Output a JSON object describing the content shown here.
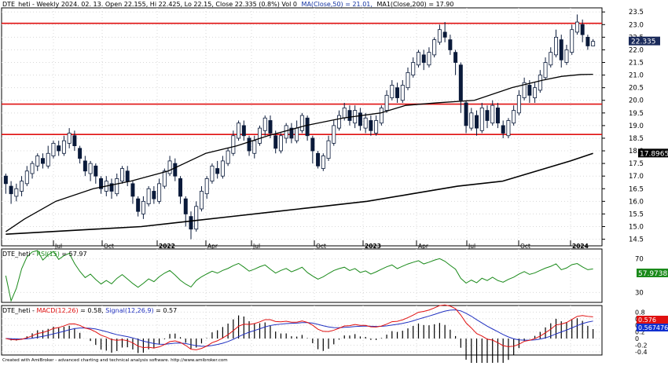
{
  "price_pane": {
    "symbol": "DTE_heti",
    "info_text": "DTE_heti - Weekly 2024. 02. 13. Open 22.155, Hi 22.425, Lo 22.15, Close 22.335 (0.8%) Vol 0",
    "ma50_label": "MA(Close,50) = 21.01,",
    "ma200_label": "MA1(Close,200) = 17.90",
    "last_price_tag": "22.335",
    "ma200_tag": "17.8965",
    "y_ticks": [
      "23.5",
      "23.0",
      "22.5",
      "22.0",
      "21.5",
      "21.0",
      "20.5",
      "20.0",
      "19.5",
      "19.0",
      "18.5",
      "18.0",
      "17.5",
      "17.0",
      "16.5",
      "16.0",
      "15.5",
      "15.0",
      "14.5"
    ],
    "x_ticks": [
      "Jul",
      "Oct",
      "2022",
      "Apr",
      "Jul",
      "Oct",
      "2023",
      "Apr",
      "Jul",
      "Oct",
      "2024"
    ]
  },
  "rsi_pane": {
    "label_prefix": "DTE_heti - ",
    "label_name": "RSI(15)",
    "label_value": " = 57.97",
    "y_ticks": [
      "70",
      "30"
    ],
    "value_tag": "57.9738"
  },
  "macd_pane": {
    "label_prefix": "DTE_heti - ",
    "macd_name": "MACD(12,26)",
    "macd_value": " = 0.58, ",
    "signal_name": "Signal(12,26,9)",
    "signal_value": " = 0.57",
    "y_ticks": [
      "0.8",
      "0.6",
      "0.4",
      "0.2",
      "0",
      "-0.2",
      "-0.4"
    ],
    "macd_tag": "0.576",
    "signal_tag": "0.567476"
  },
  "footer": "Created with AmiBroker - advanced charting and technical analysis software. http://www.amibroker.com",
  "colors": {
    "up_candle": "#ffffff",
    "down_candle": "#0a1a3a",
    "support_line": "#e01010",
    "ma_line": "#000000",
    "rsi_line": "#1a8a1a",
    "macd_line": "#e01010",
    "signal_line": "#2030c0",
    "tag_green": "#1a8a1a",
    "tag_blue": "#1030d0",
    "tag_red": "#e01010"
  },
  "chart_data": {
    "type": "candlestick",
    "ylim": [
      14.3,
      23.6
    ],
    "horizontal_levels": [
      23.05,
      19.85,
      18.65
    ],
    "ma50": [
      [
        0,
        14.8
      ],
      [
        15,
        15.3
      ],
      [
        40,
        16.0
      ],
      [
        70,
        16.5
      ],
      [
        100,
        16.8
      ],
      [
        130,
        17.2
      ],
      [
        160,
        17.9
      ],
      [
        185,
        18.2
      ],
      [
        210,
        18.6
      ],
      [
        240,
        19.0
      ],
      [
        270,
        19.3
      ],
      [
        300,
        19.5
      ],
      [
        320,
        19.8
      ],
      [
        345,
        19.9
      ],
      [
        375,
        20.0
      ],
      [
        405,
        20.5
      ],
      [
        430,
        20.8
      ],
      [
        445,
        20.95
      ],
      [
        460,
        21.02
      ],
      [
        470,
        21.03
      ]
    ],
    "ma200": [
      [
        0,
        14.7
      ],
      [
        40,
        14.8
      ],
      [
        80,
        14.9
      ],
      [
        120,
        15.0
      ],
      [
        160,
        15.2
      ],
      [
        200,
        15.4
      ],
      [
        240,
        15.6
      ],
      [
        280,
        15.8
      ],
      [
        320,
        16.0
      ],
      [
        360,
        16.3
      ],
      [
        400,
        16.6
      ],
      [
        440,
        16.8
      ],
      [
        470,
        17.2
      ],
      [
        500,
        17.6
      ],
      [
        520,
        17.9
      ]
    ],
    "candles": [
      [
        17.0,
        16.7,
        17.1,
        16.3
      ],
      [
        16.6,
        16.3,
        16.8,
        15.9
      ],
      [
        16.2,
        16.5,
        16.7,
        16.0
      ],
      [
        16.4,
        16.8,
        17.0,
        16.2
      ],
      [
        16.7,
        17.2,
        17.4,
        16.6
      ],
      [
        17.1,
        17.5,
        17.6,
        16.9
      ],
      [
        17.4,
        17.8,
        17.9,
        17.2
      ],
      [
        17.7,
        17.5,
        17.9,
        17.3
      ],
      [
        17.4,
        17.9,
        18.2,
        17.3
      ],
      [
        17.8,
        18.3,
        18.4,
        17.7
      ],
      [
        18.2,
        18.0,
        18.4,
        17.8
      ],
      [
        17.9,
        18.4,
        18.6,
        17.8
      ],
      [
        18.3,
        18.7,
        18.9,
        18.1
      ],
      [
        18.6,
        18.2,
        18.8,
        18.0
      ],
      [
        18.1,
        17.7,
        18.2,
        17.5
      ],
      [
        17.6,
        17.2,
        17.8,
        17.0
      ],
      [
        17.1,
        17.5,
        17.6,
        16.8
      ],
      [
        17.4,
        17.0,
        17.5,
        16.7
      ],
      [
        16.9,
        16.5,
        17.0,
        16.3
      ],
      [
        16.4,
        16.8,
        17.0,
        16.2
      ],
      [
        16.7,
        16.4,
        16.9,
        16.1
      ],
      [
        16.3,
        16.9,
        17.1,
        16.2
      ],
      [
        16.8,
        17.3,
        17.4,
        16.7
      ],
      [
        17.2,
        16.8,
        17.4,
        16.6
      ],
      [
        16.7,
        16.2,
        16.8,
        15.9
      ],
      [
        16.1,
        15.6,
        16.2,
        15.4
      ],
      [
        15.5,
        16.0,
        16.2,
        15.3
      ],
      [
        15.9,
        16.5,
        16.6,
        15.8
      ],
      [
        16.4,
        16.1,
        16.6,
        15.9
      ],
      [
        16.0,
        16.7,
        16.9,
        15.9
      ],
      [
        16.6,
        17.2,
        17.3,
        16.5
      ],
      [
        17.1,
        17.6,
        17.8,
        17.0
      ],
      [
        17.5,
        17.0,
        17.7,
        16.8
      ],
      [
        16.9,
        16.2,
        17.0,
        15.9
      ],
      [
        16.1,
        15.5,
        16.2,
        15.0
      ],
      [
        15.4,
        14.9,
        15.6,
        14.5
      ],
      [
        14.9,
        15.8,
        16.0,
        14.8
      ],
      [
        15.7,
        16.4,
        16.6,
        15.6
      ],
      [
        16.3,
        16.9,
        17.0,
        16.1
      ],
      [
        16.8,
        17.4,
        17.5,
        16.7
      ],
      [
        17.3,
        17.1,
        17.6,
        16.9
      ],
      [
        17.0,
        17.6,
        17.8,
        16.9
      ],
      [
        17.5,
        18.0,
        18.1,
        17.4
      ],
      [
        17.9,
        18.6,
        18.8,
        17.8
      ],
      [
        18.5,
        19.1,
        19.2,
        18.4
      ],
      [
        19.0,
        18.6,
        19.2,
        18.4
      ],
      [
        18.5,
        18.0,
        18.6,
        17.8
      ],
      [
        17.9,
        18.4,
        18.6,
        17.7
      ],
      [
        18.3,
        18.9,
        19.0,
        18.2
      ],
      [
        18.8,
        19.3,
        19.4,
        18.6
      ],
      [
        19.2,
        18.7,
        19.4,
        18.5
      ],
      [
        18.6,
        18.1,
        18.8,
        17.9
      ],
      [
        18.0,
        18.6,
        18.7,
        17.9
      ],
      [
        18.5,
        19.0,
        19.1,
        18.3
      ],
      [
        18.9,
        18.5,
        19.1,
        18.3
      ],
      [
        18.4,
        18.9,
        19.2,
        18.3
      ],
      [
        18.8,
        19.4,
        19.5,
        18.7
      ],
      [
        19.3,
        18.6,
        19.4,
        18.4
      ],
      [
        18.5,
        18.0,
        18.6,
        17.5
      ],
      [
        17.9,
        17.4,
        18.0,
        17.3
      ],
      [
        17.3,
        17.8,
        17.9,
        17.2
      ],
      [
        17.7,
        18.4,
        18.6,
        17.6
      ],
      [
        18.3,
        19.0,
        19.2,
        18.2
      ],
      [
        18.9,
        19.4,
        19.6,
        18.8
      ],
      [
        19.3,
        19.7,
        19.9,
        19.2
      ],
      [
        19.6,
        19.2,
        19.8,
        19.0
      ],
      [
        19.1,
        19.6,
        19.8,
        18.9
      ],
      [
        19.5,
        19.0,
        19.7,
        18.8
      ],
      [
        18.9,
        19.3,
        19.5,
        18.7
      ],
      [
        19.2,
        18.8,
        19.4,
        18.6
      ],
      [
        18.7,
        19.2,
        19.4,
        18.6
      ],
      [
        19.1,
        19.7,
        19.8,
        19.0
      ],
      [
        19.6,
        20.2,
        20.4,
        19.5
      ],
      [
        20.1,
        20.6,
        20.8,
        20.0
      ],
      [
        20.5,
        20.1,
        20.7,
        19.9
      ],
      [
        20.0,
        20.6,
        20.8,
        19.9
      ],
      [
        20.5,
        21.1,
        21.3,
        20.4
      ],
      [
        21.0,
        21.5,
        21.7,
        20.9
      ],
      [
        21.4,
        21.9,
        22.0,
        21.3
      ],
      [
        21.8,
        21.5,
        22.0,
        21.2
      ],
      [
        21.4,
        21.9,
        22.1,
        21.3
      ],
      [
        21.8,
        22.4,
        22.5,
        21.7
      ],
      [
        22.3,
        22.8,
        23.0,
        22.2
      ],
      [
        22.7,
        22.5,
        23.1,
        22.3
      ],
      [
        22.4,
        22.0,
        22.6,
        21.8
      ],
      [
        21.9,
        21.5,
        22.0,
        21.0
      ],
      [
        21.4,
        20.0,
        21.5,
        19.5
      ],
      [
        19.9,
        19.0,
        20.0,
        18.7
      ],
      [
        18.9,
        19.5,
        19.7,
        18.8
      ],
      [
        19.4,
        18.9,
        19.6,
        18.6
      ],
      [
        18.8,
        19.7,
        19.9,
        18.7
      ],
      [
        19.6,
        19.2,
        19.8,
        18.9
      ],
      [
        19.1,
        19.8,
        20.0,
        19.0
      ],
      [
        19.7,
        19.1,
        19.9,
        18.9
      ],
      [
        19.0,
        18.7,
        19.2,
        18.5
      ],
      [
        18.6,
        19.2,
        19.3,
        18.5
      ],
      [
        19.1,
        19.6,
        19.8,
        19.0
      ],
      [
        19.5,
        20.2,
        20.4,
        19.4
      ],
      [
        20.1,
        20.7,
        20.9,
        20.0
      ],
      [
        20.6,
        20.2,
        20.8,
        19.9
      ],
      [
        20.1,
        20.5,
        20.7,
        19.9
      ],
      [
        20.4,
        21.0,
        21.2,
        20.3
      ],
      [
        20.9,
        21.5,
        21.7,
        20.8
      ],
      [
        21.4,
        21.9,
        22.1,
        21.3
      ],
      [
        21.8,
        22.5,
        22.8,
        21.7
      ],
      [
        22.4,
        21.6,
        22.6,
        21.3
      ],
      [
        21.5,
        22.0,
        22.2,
        21.4
      ],
      [
        21.9,
        22.8,
        23.0,
        21.8
      ],
      [
        22.7,
        23.1,
        23.4,
        22.6
      ],
      [
        23.0,
        22.6,
        23.2,
        22.3
      ],
      [
        22.5,
        22.155,
        22.6,
        22.0
      ],
      [
        22.155,
        22.335,
        22.425,
        22.15
      ]
    ]
  }
}
